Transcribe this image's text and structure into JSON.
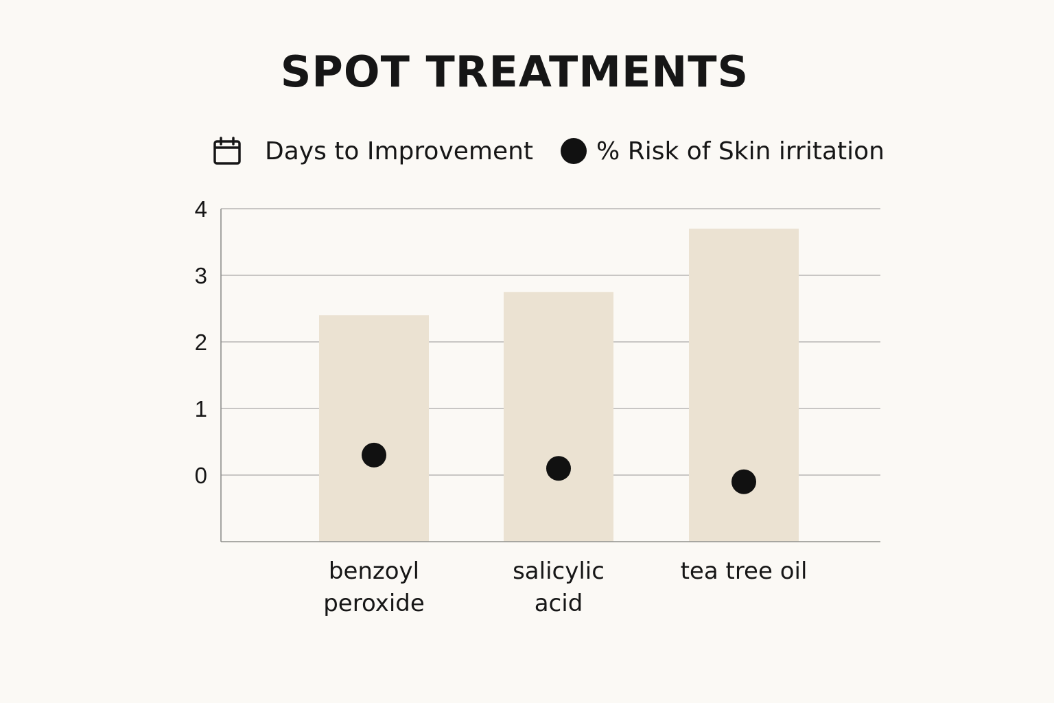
{
  "chart_data": {
    "type": "bar",
    "title": "SPOT TREATMENTS",
    "xlabel": "",
    "ylabel": "",
    "categories": [
      [
        "benzoyl",
        "peroxide"
      ],
      [
        "salicylic",
        "acid"
      ],
      [
        "tea tree oil"
      ]
    ],
    "series": [
      {
        "name": "Days to Improvement",
        "type": "bar",
        "values": [
          2.4,
          2.75,
          3.7
        ],
        "color": "#ebe2d2",
        "icon": "calendar-icon"
      },
      {
        "name": "% Risk of Skin irritation",
        "type": "scatter",
        "values": [
          0.3,
          0.1,
          -0.1
        ],
        "color": "#111111",
        "icon": "dot"
      }
    ],
    "yticks": [
      0,
      1,
      2,
      3,
      4
    ],
    "ylim": [
      -1,
      4
    ],
    "grid": true,
    "legend": "top"
  }
}
